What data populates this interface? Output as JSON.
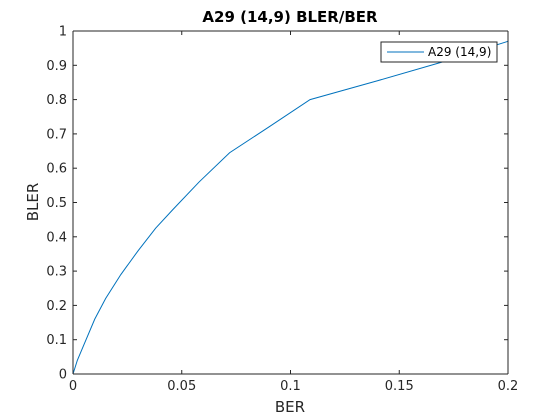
{
  "chart_data": {
    "type": "line",
    "title": "A29 (14,9) BLER/BER",
    "xlabel": "BER",
    "ylabel": "BLER",
    "xlim": [
      0,
      0.2
    ],
    "ylim": [
      0,
      1
    ],
    "xticks": [
      0,
      0.05,
      0.1,
      0.15,
      0.2
    ],
    "xtick_labels": [
      "0",
      "0.05",
      "0.1",
      "0.15",
      "0.2"
    ],
    "yticks": [
      0,
      0.1,
      0.2,
      0.3,
      0.4,
      0.5,
      0.6,
      0.7,
      0.8,
      0.9,
      1
    ],
    "ytick_labels": [
      "0",
      "0.1",
      "0.2",
      "0.3",
      "0.4",
      "0.5",
      "0.6",
      "0.7",
      "0.8",
      "0.9",
      "1"
    ],
    "grid": false,
    "legend_position": "top-right",
    "series": [
      {
        "name": "A29 (14,9)",
        "color": "#0072bd",
        "x": [
          0,
          0.002,
          0.005,
          0.01,
          0.015,
          0.022,
          0.03,
          0.038,
          0.046,
          0.058,
          0.072,
          0.09,
          0.109,
          0.14,
          0.17,
          0.2
        ],
        "y": [
          0,
          0.04,
          0.085,
          0.16,
          0.22,
          0.29,
          0.36,
          0.425,
          0.48,
          0.56,
          0.645,
          0.72,
          0.8,
          0.855,
          0.91,
          0.97
        ]
      }
    ]
  }
}
